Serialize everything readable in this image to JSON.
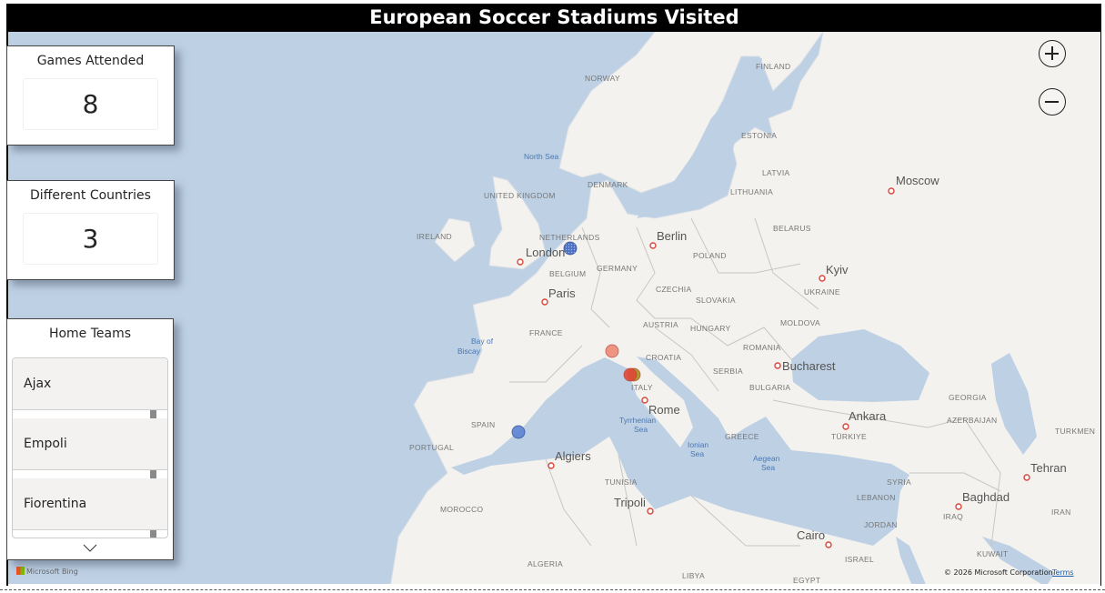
{
  "title": "European Soccer Stadiums Visited",
  "cards": [
    {
      "title": "Games Attended",
      "value": "8"
    },
    {
      "title": "Different Countries",
      "value": "3"
    }
  ],
  "slicer": {
    "title": "Home Teams",
    "items": [
      "Ajax",
      "Empoli",
      "Fiorentina"
    ],
    "scroll_icon": "chevron-down-icon"
  },
  "map": {
    "zoom_in_icon": "plus-circle-icon",
    "zoom_out_icon": "minus-circle-icon",
    "colors": {
      "water": "#bdd0e4",
      "land": "#f4f2ef",
      "border": "#c9c6c2"
    },
    "cities": [
      "London",
      "Paris",
      "Berlin",
      "Rome",
      "Bucharest",
      "Kyiv",
      "Moscow",
      "Ankara",
      "Algiers",
      "Tripoli",
      "Cairo",
      "Baghdad",
      "Tehran"
    ],
    "countries": [
      "NORWAY",
      "FINLAND",
      "ESTONIA",
      "LATVIA",
      "LITHUANIA",
      "DENMARK",
      "UNITED KINGDOM",
      "IRELAND",
      "NETHERLANDS",
      "BELGIUM",
      "GERMANY",
      "POLAND",
      "BELARUS",
      "CZECHIA",
      "SLOVAKIA",
      "UKRAINE",
      "FRANCE",
      "AUSTRIA",
      "HUNGARY",
      "MOLDOVA",
      "ROMANIA",
      "CROATIA",
      "SERBIA",
      "BULGARIA",
      "ITALY",
      "SPAIN",
      "PORTUGAL",
      "GREECE",
      "TÜRKIYE",
      "GEORGIA",
      "AZERBAIJAN",
      "TURKMEN",
      "SYRIA",
      "LEBANON",
      "JORDAN",
      "IRAQ",
      "IRAN",
      "KUWAIT",
      "TUNISIA",
      "MOROCCO",
      "ALGERIA",
      "LIBYA",
      "EGYPT",
      "ISRAEL"
    ],
    "seas": [
      "North Sea",
      "Bay of Biscay",
      "Tyrrhenian Sea",
      "Ionian Sea",
      "Aegean Sea"
    ],
    "bubbles": [
      {
        "color": "#3f66c4",
        "pattern": "dotted"
      },
      {
        "color": "#5b82d4",
        "pattern": "solid"
      },
      {
        "color": "#ec8a76",
        "pattern": "solid"
      },
      {
        "color": "#a8901a",
        "pattern": "solid"
      },
      {
        "color": "#e0473a",
        "pattern": "solid"
      }
    ],
    "attribution": {
      "logo": "Microsoft Bing",
      "copyright": "© 2026 Microsoft Corporation",
      "terms": "Terms"
    }
  }
}
